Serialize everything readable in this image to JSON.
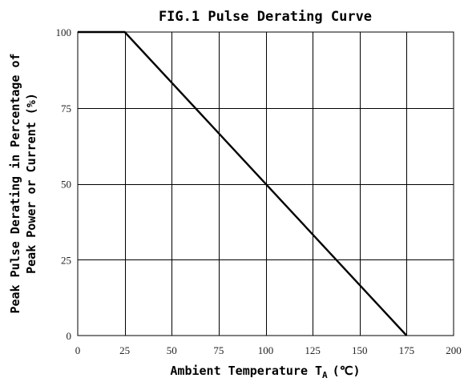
{
  "chart_data": {
    "type": "line",
    "title": "FIG.1 Pulse Derating Curve",
    "xlabel": "Ambient Temperature T",
    "xlabel_subscript": "A",
    "xlabel_unit": "(℃)",
    "ylabel_lines": [
      "Peak Pulse Derating in Percentage of",
      "Peak Power or Current (%)"
    ],
    "xlim": [
      0,
      200
    ],
    "ylim": [
      0,
      100
    ],
    "x_ticks": [
      0,
      25,
      50,
      75,
      100,
      125,
      150,
      175,
      200
    ],
    "y_ticks": [
      0,
      25,
      50,
      75,
      100
    ],
    "grid": true,
    "series": [
      {
        "x": [
          0,
          25,
          175
        ],
        "y": [
          100,
          100,
          0
        ]
      }
    ]
  }
}
